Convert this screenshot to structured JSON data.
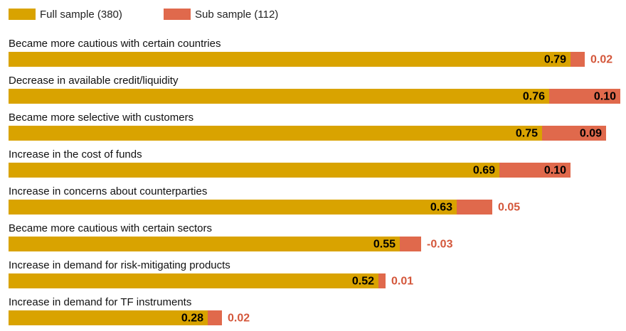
{
  "chart_data": {
    "type": "bar",
    "orientation": "horizontal",
    "stacked": true,
    "categories": [
      "Became more cautious with certain countries",
      "Decrease in available credit/liquidity",
      "Became more selective with customers",
      "Increase in the cost of funds",
      "Increase in concerns about counterparties",
      "Became more cautious with certain sectors",
      "Increase in demand for risk-mitigating products",
      "Increase in demand for TF instruments"
    ],
    "series": [
      {
        "name": "Full sample (380)",
        "color": "#d9a300",
        "values": [
          0.79,
          0.76,
          0.75,
          0.69,
          0.63,
          0.55,
          0.52,
          0.28
        ],
        "value_labels": [
          "0.79",
          "0.76",
          "0.75",
          "0.69",
          "0.63",
          "0.55",
          "0.52",
          "0.28"
        ]
      },
      {
        "name": "Sub sample (112)",
        "color": "#e0694c",
        "values": [
          0.02,
          0.1,
          0.09,
          0.1,
          0.05,
          -0.03,
          0.01,
          0.02
        ],
        "value_labels": [
          "0.02",
          "0.10",
          "0.09",
          "0.10",
          "0.05",
          "-0.03",
          "0.01",
          "0.02"
        ]
      }
    ],
    "legend": "top-left"
  }
}
